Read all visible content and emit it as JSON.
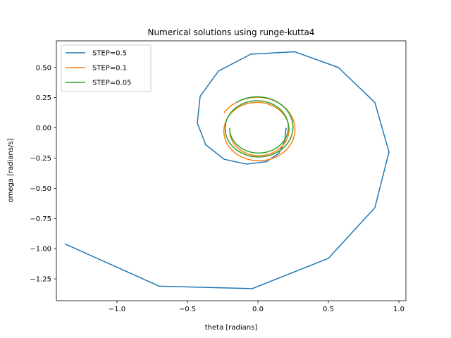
{
  "chart_data": {
    "type": "line",
    "title": "Numerical solutions using runge-kutta4",
    "xlabel": "theta [radians]",
    "ylabel": "omega [radians/s]",
    "xlim": [
      -1.43,
      1.05
    ],
    "ylim": [
      -1.43,
      0.72
    ],
    "x_ticks": [
      -1.0,
      -0.5,
      0.0,
      0.5,
      1.0
    ],
    "x_tick_labels": [
      "−1.0",
      "−0.5",
      "0.0",
      "0.5",
      "1.0"
    ],
    "y_ticks": [
      0.5,
      0.25,
      0.0,
      -0.25,
      -0.5,
      -0.75,
      -1.0,
      -1.25
    ],
    "y_tick_labels": [
      "0.50",
      "0.25",
      "0.00",
      "−0.25",
      "−0.50",
      "−0.75",
      "−1.00",
      "−1.25"
    ],
    "grid": false,
    "legend_position": "top-left",
    "series": [
      {
        "name": "STEP=0.5",
        "color": "#1f77b4",
        "points": [
          [
            -1.37,
            -0.96
          ],
          [
            -0.7,
            -1.31
          ],
          [
            -0.04,
            -1.33
          ],
          [
            0.5,
            -1.08
          ],
          [
            0.83,
            -0.66
          ],
          [
            0.93,
            -0.2
          ],
          [
            0.83,
            0.21
          ],
          [
            0.57,
            0.5
          ],
          [
            0.26,
            0.63
          ],
          [
            -0.05,
            0.61
          ],
          [
            -0.28,
            0.47
          ],
          [
            -0.41,
            0.26
          ],
          [
            -0.43,
            0.04
          ],
          [
            -0.37,
            -0.14
          ],
          [
            -0.24,
            -0.26
          ],
          [
            -0.08,
            -0.3
          ],
          [
            0.06,
            -0.28
          ],
          [
            0.15,
            -0.21
          ],
          [
            0.19,
            -0.11
          ],
          [
            0.2,
            0.0
          ]
        ]
      },
      {
        "name": "STEP=0.1",
        "color": "#ff7f0e",
        "points": "spiral",
        "spiral": {
          "cx": 0.0,
          "cy": -0.02,
          "r0": 0.28,
          "r1": 0.2,
          "a0": 2.6,
          "turns": 1.9
        }
      },
      {
        "name": "STEP=0.05",
        "color": "#2ca02c",
        "points": "spiral",
        "spiral": {
          "cx": 0.0,
          "cy": 0.0,
          "r0": 0.26,
          "r1": 0.2,
          "a0": 2.2,
          "turns": 1.85
        }
      }
    ]
  }
}
